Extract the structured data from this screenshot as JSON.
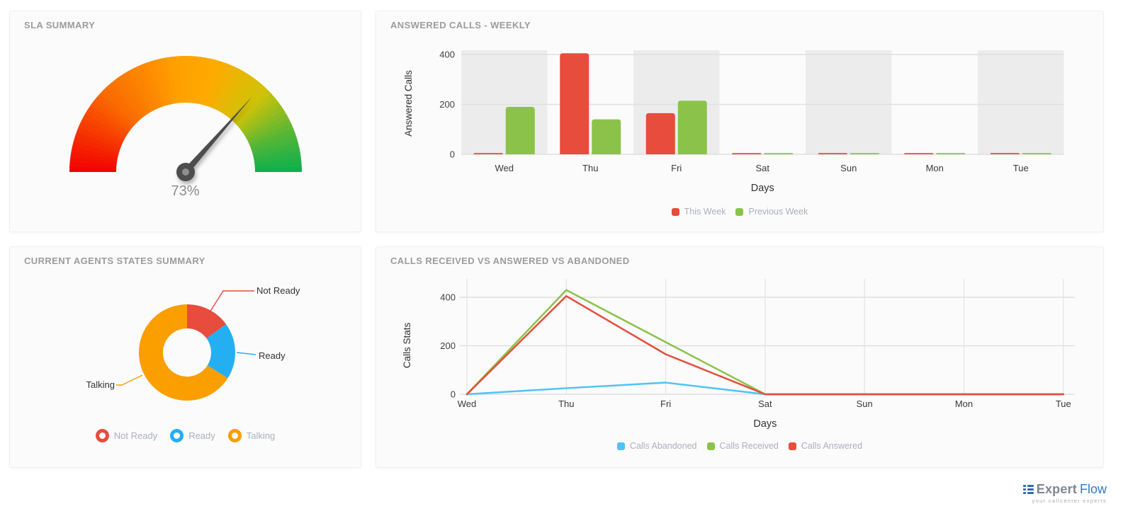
{
  "chart_data": [
    {
      "type": "gauge",
      "panel_title": "SLA SUMMARY",
      "value": 73,
      "label": "73%",
      "min": 0,
      "max": 100,
      "arc_stops": [
        {
          "deg": 0,
          "color": "#f20000"
        },
        {
          "deg": 45,
          "color": "#fa6c00"
        },
        {
          "deg": 85,
          "color": "#ffa000"
        },
        {
          "deg": 105,
          "color": "#ffaa00"
        },
        {
          "deg": 135,
          "color": "#cfc308"
        },
        {
          "deg": 160,
          "color": "#53b637"
        },
        {
          "deg": 180,
          "color": "#0cb04e"
        }
      ],
      "needle_color": "#4d4d4d",
      "value_color": "#8b8b8b"
    },
    {
      "type": "bar",
      "panel_title": "ANSWERED CALLS - WEEKLY",
      "categories": [
        "Wed",
        "Thu",
        "Fri",
        "Sat",
        "Sun",
        "Mon",
        "Tue"
      ],
      "series": [
        {
          "name": "This Week",
          "color": "#e74c3c",
          "values": [
            5,
            405,
            165,
            5,
            5,
            5,
            5
          ]
        },
        {
          "name": "Previous Week",
          "color": "#8bc34a",
          "values": [
            190,
            140,
            215,
            5,
            5,
            5,
            5
          ]
        }
      ],
      "xlabel": "Days",
      "ylabel": "Answered Calls",
      "yticks": [
        0,
        200,
        400
      ],
      "ylim": [
        0,
        430
      ],
      "grid": true,
      "legend_position": "bottom"
    },
    {
      "type": "pie",
      "donut": true,
      "panel_title": "CURRENT AGENTS STATES SUMMARY",
      "slices": [
        {
          "label": "Not Ready",
          "color": "#e74c3c",
          "percent": 15
        },
        {
          "label": "Ready",
          "color": "#25aff3",
          "percent": 19
        },
        {
          "label": "Talking",
          "color": "#fb9e00",
          "percent": 66
        }
      ],
      "legend_position": "bottom"
    },
    {
      "type": "line",
      "panel_title": "CALLS RECEIVED VS ANSWERED VS ABANDONED",
      "categories": [
        "Wed",
        "Thu",
        "Fri",
        "Sat",
        "Sun",
        "Mon",
        "Tue"
      ],
      "series": [
        {
          "name": "Calls Abandoned",
          "color": "#4ec3f7",
          "values": [
            0,
            25,
            48,
            0,
            0,
            0,
            0
          ]
        },
        {
          "name": "Calls Received",
          "color": "#8bc34a",
          "values": [
            0,
            430,
            215,
            0,
            0,
            0,
            0
          ]
        },
        {
          "name": "Calls Answered",
          "color": "#e74c3c",
          "values": [
            0,
            405,
            165,
            0,
            0,
            0,
            0
          ]
        }
      ],
      "xlabel": "Days",
      "ylabel": "Calls Stats",
      "yticks": [
        0,
        200,
        400
      ],
      "ylim": [
        0,
        430
      ],
      "grid": true,
      "legend_position": "bottom"
    }
  ],
  "logo": {
    "brand_primary": "Expert",
    "brand_secondary": "Flow",
    "tagline": "your callcenter experts"
  }
}
